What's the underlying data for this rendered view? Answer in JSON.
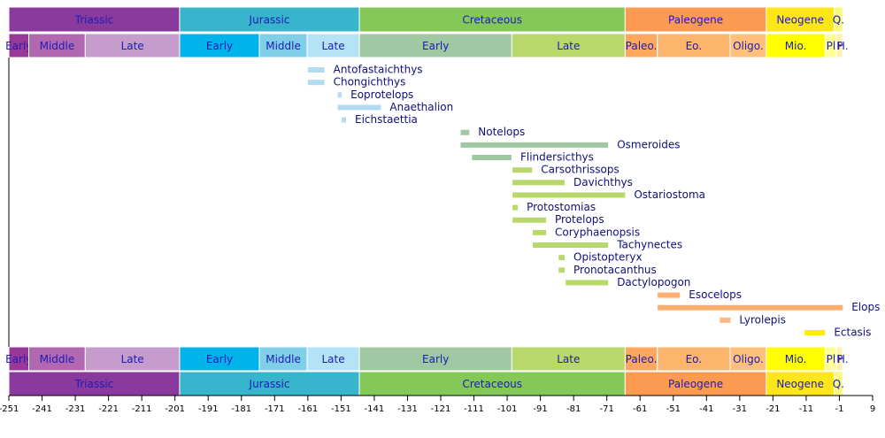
{
  "chart_data": {
    "type": "timeline",
    "xlim": [
      -251,
      9
    ],
    "xticks": [
      -251,
      -241,
      -231,
      -221,
      -211,
      -201,
      -191,
      -181,
      -171,
      -161,
      -151,
      -141,
      -131,
      -121,
      -111,
      -101,
      -91,
      -81,
      -71,
      -61,
      -51,
      -41,
      -31,
      -21,
      -11,
      -1,
      9
    ],
    "periods": [
      {
        "name": "Triassic",
        "start": -251,
        "end": -199.6,
        "color": "#8a3a9c"
      },
      {
        "name": "Jurassic",
        "start": -199.6,
        "end": -145.5,
        "color": "#38b4cc"
      },
      {
        "name": "Cretaceous",
        "start": -145.5,
        "end": -65.5,
        "color": "#84c858"
      },
      {
        "name": "Paleogene",
        "start": -65.5,
        "end": -23,
        "color": "#fd9a52"
      },
      {
        "name": "Neogene",
        "start": -23,
        "end": -2.6,
        "color": "#ffe619"
      },
      {
        "name": "Q.",
        "start": -2.6,
        "end": 0,
        "color": "#f9f97f"
      }
    ],
    "epochs": [
      {
        "name": "Early",
        "start": -251,
        "end": -245,
        "color": "#983999"
      },
      {
        "name": "Middle",
        "start": -245,
        "end": -228,
        "color": "#b168b1"
      },
      {
        "name": "Late",
        "start": -228,
        "end": -199.6,
        "color": "#c69ccc"
      },
      {
        "name": "Early",
        "start": -199.6,
        "end": -175.6,
        "color": "#00b4eb"
      },
      {
        "name": "Middle",
        "start": -175.6,
        "end": -161.2,
        "color": "#80cfe8"
      },
      {
        "name": "Late",
        "start": -161.2,
        "end": -145.5,
        "color": "#b3e3f4"
      },
      {
        "name": "Early",
        "start": -145.5,
        "end": -99.6,
        "color": "#a0c8a2"
      },
      {
        "name": "Late",
        "start": -99.6,
        "end": -65.5,
        "color": "#b8d86c"
      },
      {
        "name": "Paleo.",
        "start": -65.5,
        "end": -55.8,
        "color": "#fda75f"
      },
      {
        "name": "Eo.",
        "start": -55.8,
        "end": -33.9,
        "color": "#fdb46c"
      },
      {
        "name": "Oligo.",
        "start": -33.9,
        "end": -23,
        "color": "#fec07a"
      },
      {
        "name": "Mio.",
        "start": -23,
        "end": -5.3,
        "color": "#ffff00"
      },
      {
        "name": "Pl",
        "start": -5.3,
        "end": -1.8,
        "color": "#ffff99"
      },
      {
        "name": "P",
        "start": -1.8,
        "end": -0.01,
        "color": "#fff2ae"
      },
      {
        "name": "H.",
        "start": -0.01,
        "end": 0,
        "color": "#fef2e0"
      }
    ],
    "taxa": [
      {
        "name": "Antofastaichthys",
        "start": -161,
        "end": -156,
        "color": "#b3dcf2"
      },
      {
        "name": "Chongichthys",
        "start": -161,
        "end": -156,
        "color": "#b3dcf2"
      },
      {
        "name": "Eoprotelops",
        "start": -152,
        "end": -150.8,
        "color": "#b3dcf2"
      },
      {
        "name": "Anaethalion",
        "start": -152,
        "end": -139,
        "color": "#b3dcf2"
      },
      {
        "name": "Eichstaettia",
        "start": -150.8,
        "end": -149.5,
        "color": "#b3dcf2"
      },
      {
        "name": "Notelops",
        "start": -115,
        "end": -112.4,
        "color": "#a0c8a2"
      },
      {
        "name": "Osmeroides",
        "start": -115,
        "end": -70.6,
        "color": "#a0c8a2"
      },
      {
        "name": "Flindersicthys",
        "start": -111.6,
        "end": -99.7,
        "color": "#a0c8a2"
      },
      {
        "name": "Carsothrissops",
        "start": -99.4,
        "end": -93.5,
        "color": "#b8d86c"
      },
      {
        "name": "Davichthys",
        "start": -99.4,
        "end": -83.7,
        "color": "#b8d86c"
      },
      {
        "name": "Ostariostoma",
        "start": -99.4,
        "end": -65.5,
        "color": "#b8d86c"
      },
      {
        "name": "Protostomias",
        "start": -99.4,
        "end": -97.8,
        "color": "#b8d86c"
      },
      {
        "name": "Protelops",
        "start": -99.4,
        "end": -89.3,
        "color": "#b8d86c"
      },
      {
        "name": "Coryphaenopsis",
        "start": -93.3,
        "end": -89.3,
        "color": "#b8d86c"
      },
      {
        "name": "Tachynectes",
        "start": -93.3,
        "end": -70.6,
        "color": "#b8d86c"
      },
      {
        "name": "Opistopteryx",
        "start": -85.5,
        "end": -83.7,
        "color": "#b8d86c"
      },
      {
        "name": "Pronotacanthus",
        "start": -85.5,
        "end": -83.7,
        "color": "#b8d86c"
      },
      {
        "name": "Dactylopogon",
        "start": -83.4,
        "end": -70.6,
        "color": "#b8d86c"
      },
      {
        "name": "Esocelops",
        "start": -55.7,
        "end": -49,
        "color": "#fdae70"
      },
      {
        "name": "Elops",
        "start": -55.7,
        "end": 0,
        "color": "#fdae70"
      },
      {
        "name": "Lyrolepis",
        "start": -37,
        "end": -33.8,
        "color": "#fdb883"
      },
      {
        "name": "Ectasis",
        "start": -11.5,
        "end": -5.3,
        "color": "#ffee00"
      }
    ]
  }
}
